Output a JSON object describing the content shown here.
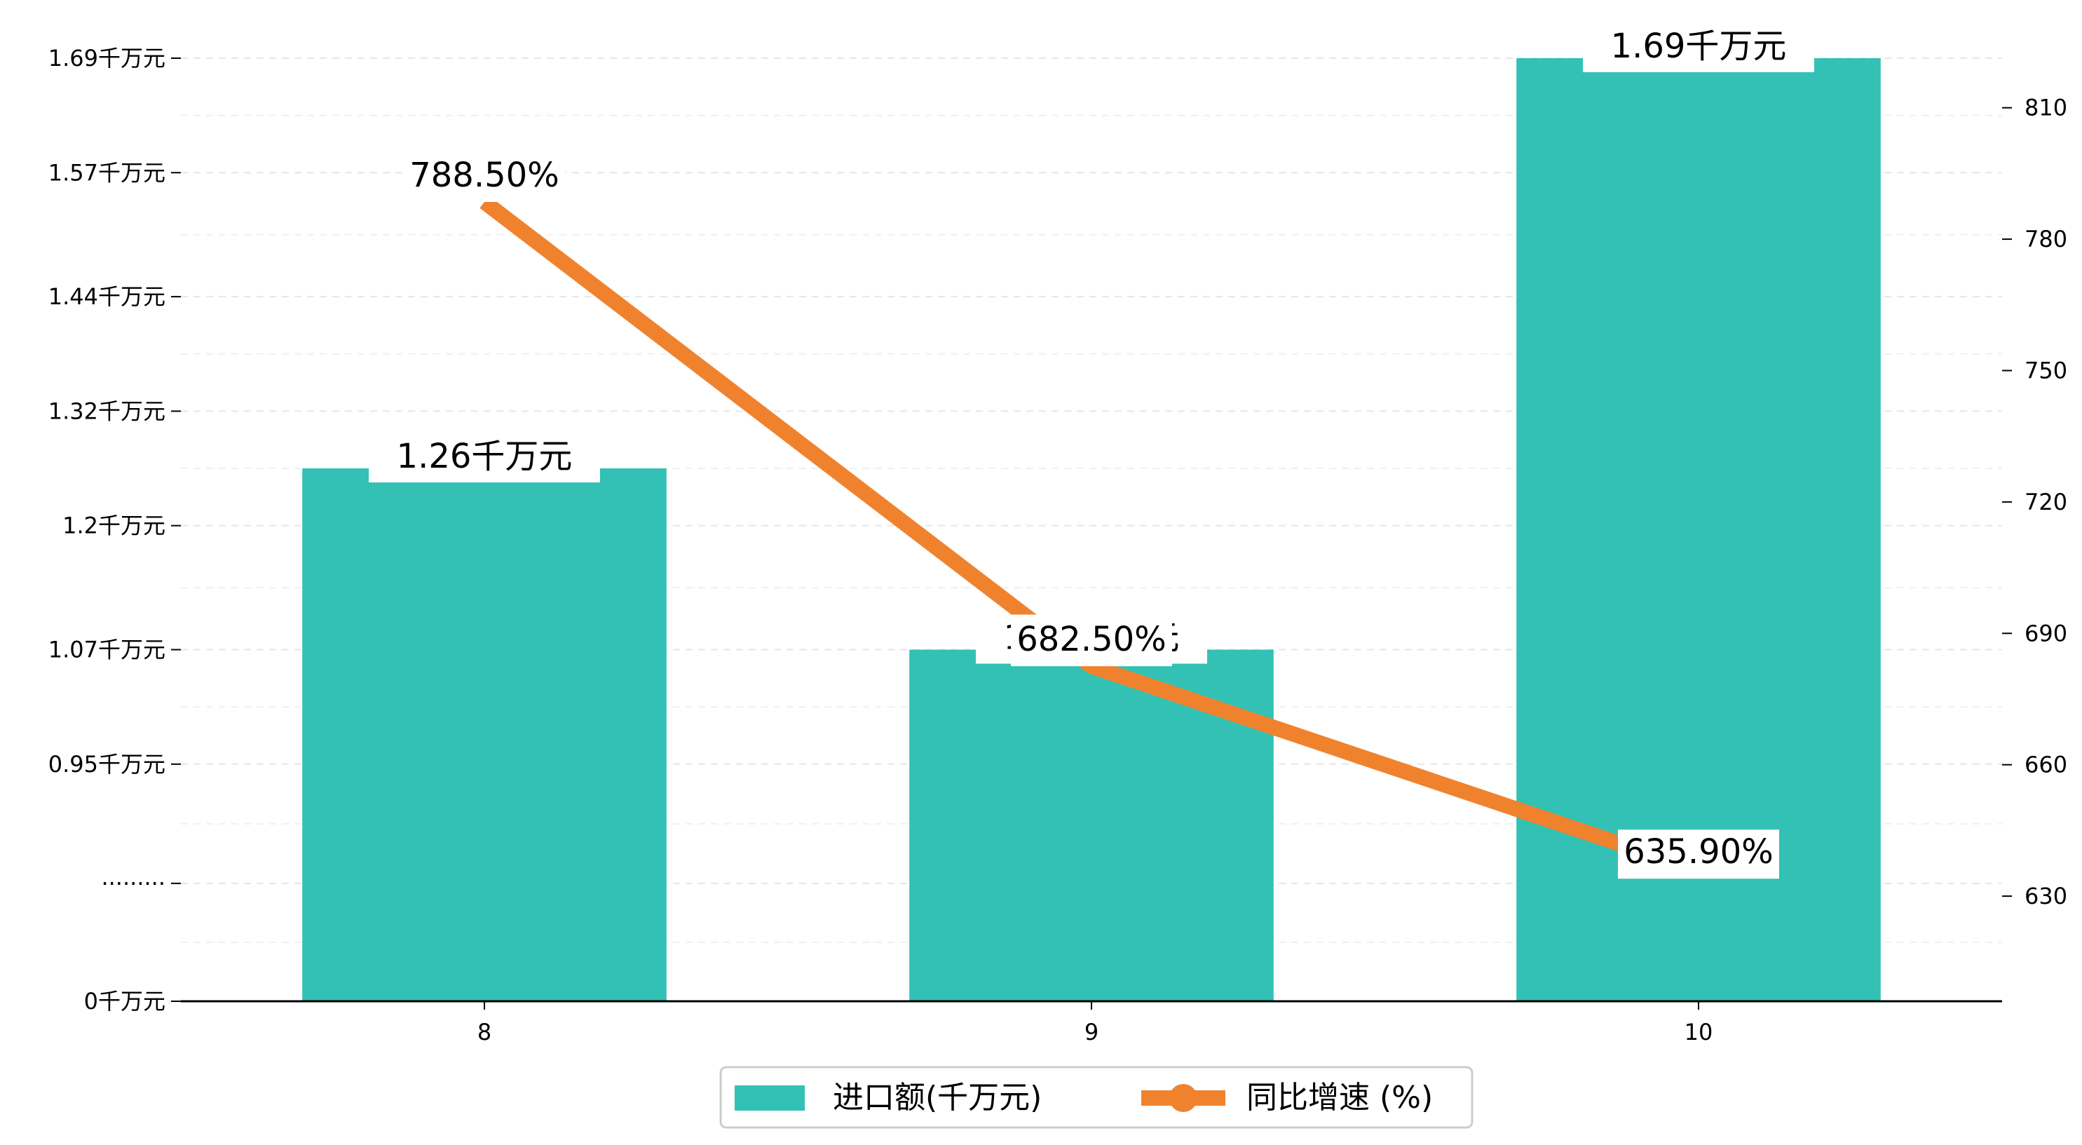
{
  "chart_data": {
    "type": "bar",
    "categories": [
      "8",
      "9",
      "10"
    ],
    "series": [
      {
        "name": "进口额(千万元)",
        "type": "bar",
        "axis": "left",
        "values": [
          1.26,
          1.07,
          1.69
        ],
        "labels": [
          "1.26千万元",
          "1.07千万元",
          "1.69千万元"
        ],
        "color": "#32c1b4"
      },
      {
        "name": "同比增速 (%)",
        "type": "line",
        "axis": "right",
        "values": [
          788.5,
          682.5,
          635.9
        ],
        "labels": [
          "788.50%",
          "682.50%",
          "635.90%"
        ],
        "color": "#f0822e"
      }
    ],
    "y_left": {
      "tick_values": [
        0,
        0.825,
        0.95,
        1.07,
        1.2,
        1.32,
        1.44,
        1.57,
        1.69
      ],
      "tick_labels": [
        "0千万元",
        "·········",
        "0.95千万元",
        "1.07千万元",
        "1.2千万元",
        "1.32千万元",
        "1.44千万元",
        "1.57千万元",
        "1.69千万元"
      ],
      "break_display": [
        0,
        0.825,
        1.69
      ]
    },
    "y_right": {
      "ylim": [
        606,
        825
      ],
      "ticks": [
        630,
        660,
        690,
        720,
        750,
        780,
        810
      ]
    },
    "grid": true,
    "legend_position": "bottom-center",
    "legend": [
      "进口额(千万元)",
      "同比增速 (%)"
    ]
  }
}
